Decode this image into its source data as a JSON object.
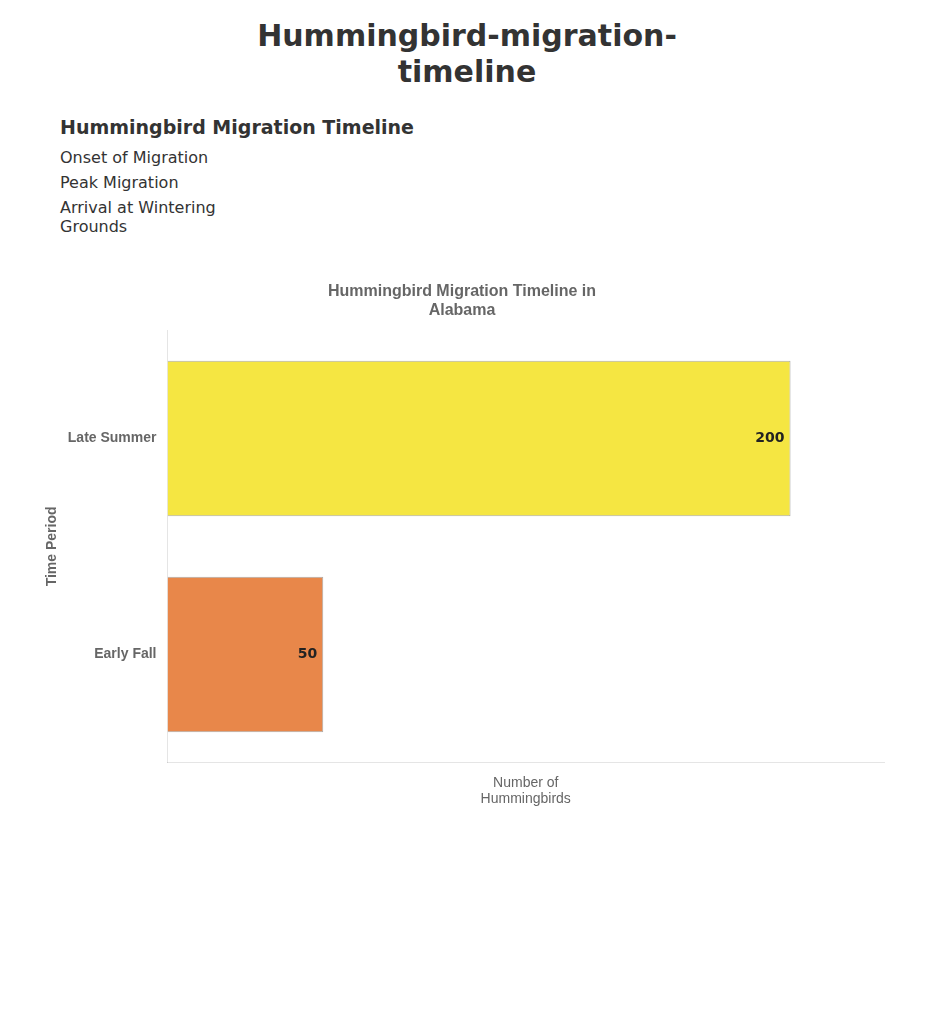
{
  "chart_data": {
    "type": "bar",
    "title": "Hummingbird-migration-\ntimeline",
    "subtitle": "Hummingbird Migration Timeline in\nAlabama",
    "annotations": [
      "Hummingbird Migration Timeline",
      "Onset of Migration",
      "Peak Migration",
      "Arrival at Wintering\nGrounds"
    ],
    "categories": [
      "Late Summer",
      "Early Fall"
    ],
    "values": [
      200,
      50
    ],
    "colors": [
      "#f5e642",
      "#e8874a"
    ],
    "orientation": "horizontal",
    "xlabel": "Number of\nHummingbirds",
    "ylabel": "Time Period",
    "xlim": [
      0,
      230
    ],
    "grid": false,
    "tick_labels": "y",
    "data_labels": true
  }
}
